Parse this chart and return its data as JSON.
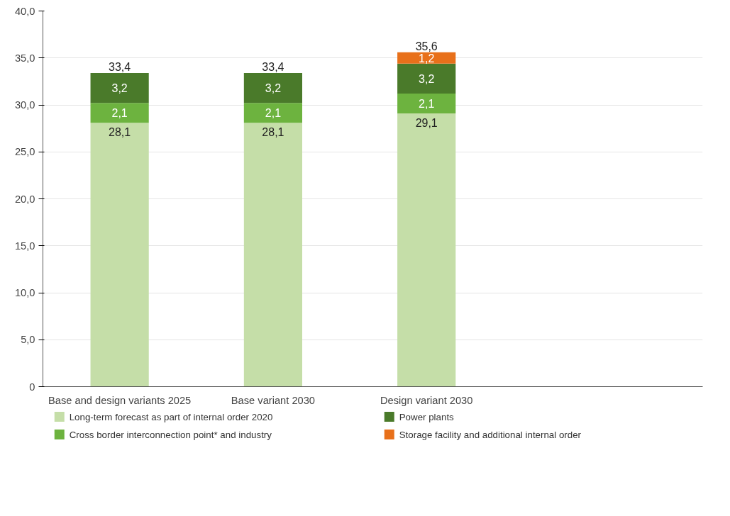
{
  "chart_data": {
    "type": "bar",
    "stacked": true,
    "categories": [
      "Base and design variants 2025",
      "Base variant 2030",
      "Design variant 2030"
    ],
    "series": [
      {
        "name": "Long-term forecast as part of internal order 2020",
        "color": "#c5dea8",
        "values": [
          28.1,
          28.1,
          29.1
        ],
        "value_labels": [
          "28,1",
          "28,1",
          "29,1"
        ]
      },
      {
        "name": "Cross border interconnection point*  and industry",
        "color": "#6db33f",
        "values": [
          2.1,
          2.1,
          2.1
        ],
        "value_labels": [
          "2,1",
          "2,1",
          "2,1"
        ]
      },
      {
        "name": "Power plants",
        "color": "#4a7a2a",
        "values": [
          3.2,
          3.2,
          3.2
        ],
        "value_labels": [
          "3,2",
          "3,2",
          "3,2"
        ]
      },
      {
        "name": "Storage facility and additional internal order",
        "color": "#e8701a",
        "values": [
          null,
          null,
          1.2
        ],
        "value_labels": [
          null,
          null,
          "1,2"
        ]
      }
    ],
    "totals": [
      "33,4",
      "33,4",
      "35,6"
    ],
    "ylim": [
      0,
      40
    ],
    "yticks": [
      {
        "value": 0,
        "label": "0"
      },
      {
        "value": 5,
        "label": "5,0"
      },
      {
        "value": 10,
        "label": "10,0"
      },
      {
        "value": 15,
        "label": "15,0"
      },
      {
        "value": 20,
        "label": "20,0"
      },
      {
        "value": 25,
        "label": "25,0"
      },
      {
        "value": 30,
        "label": "30,0"
      },
      {
        "value": 35,
        "label": "35,0"
      },
      {
        "value": 40,
        "label": "40,0"
      }
    ],
    "grid": "y",
    "legend": "bottom"
  }
}
